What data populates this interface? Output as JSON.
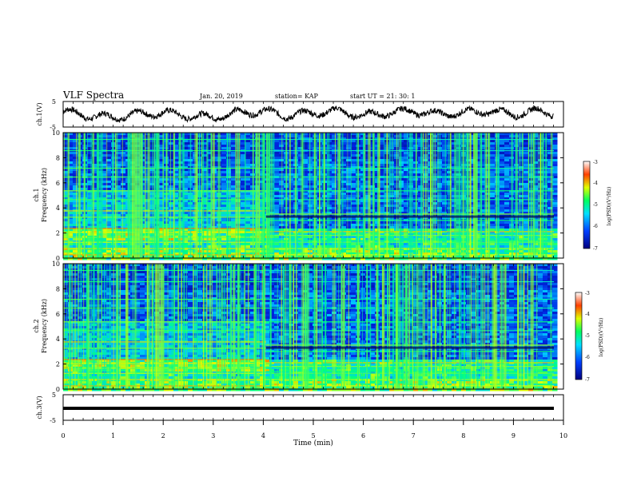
{
  "header": {
    "title": "VLF Spectra",
    "date": "Jan. 20, 2019",
    "station": "station= KAP",
    "start": "start  UT =   21: 30: 1"
  },
  "chart_data": [
    {
      "type": "line",
      "panel": "ch1-waveform",
      "ylabel": "ch.1(V)",
      "ylim": [
        -5,
        5
      ],
      "yticks": [
        "5",
        "-5"
      ],
      "series": [
        {
          "values_note_shape": "oscillating waveform",
          "x": [
            0,
            0.5,
            1,
            1.5,
            2,
            2.5,
            3,
            3.5,
            4,
            4.5,
            5,
            5.5,
            6,
            6.5,
            7,
            7.5,
            8,
            8.5,
            9,
            9.5,
            9.8
          ],
          "y": [
            2,
            -1,
            -2,
            0,
            1,
            -1,
            -2,
            1,
            2,
            -1,
            1,
            2,
            -1,
            1,
            2,
            0,
            1,
            2,
            0,
            2,
            1
          ]
        }
      ]
    },
    {
      "type": "heatmap",
      "panel": "ch1-spectrogram",
      "ylabel": "ch.1",
      "ylabel2": "Frequency (kHz)",
      "ylim": [
        0,
        10
      ],
      "yticks": [
        "0",
        "2",
        "4",
        "6",
        "8",
        "10"
      ],
      "colorbar": {
        "label": "log(PSD)(V²/Hz)",
        "range": [
          -7,
          -3
        ],
        "ticks": [
          "-3",
          "-4",
          "-5",
          "-6",
          "-7"
        ]
      }
    },
    {
      "type": "heatmap",
      "panel": "ch2-spectrogram",
      "ylabel": "ch.2",
      "ylabel2": "Frequency (kHz)",
      "ylim": [
        0,
        10
      ],
      "yticks": [
        "0",
        "2",
        "4",
        "6",
        "8",
        "10"
      ],
      "colorbar": {
        "label": "log(PSD)(V²/Hz)",
        "range": [
          -7,
          -3
        ],
        "ticks": [
          "-3",
          "-4",
          "-5",
          "-6",
          "-7"
        ]
      }
    },
    {
      "type": "line",
      "panel": "ch3-waveform",
      "ylabel": "ch.3(V)",
      "ylim": [
        -5,
        5
      ],
      "yticks": [
        "5",
        "-5"
      ],
      "series": [
        {
          "x": [
            0,
            9.8
          ],
          "y": [
            0,
            0
          ]
        }
      ]
    }
  ],
  "xaxis": {
    "label": "Time (min)",
    "xlim": [
      0,
      10
    ],
    "ticks": [
      "0",
      "1",
      "2",
      "3",
      "4",
      "5",
      "6",
      "7",
      "8",
      "9",
      "10"
    ]
  },
  "colors": {
    "low": "#000080",
    "mid": "#00ffff",
    "high": "#ff0000"
  }
}
